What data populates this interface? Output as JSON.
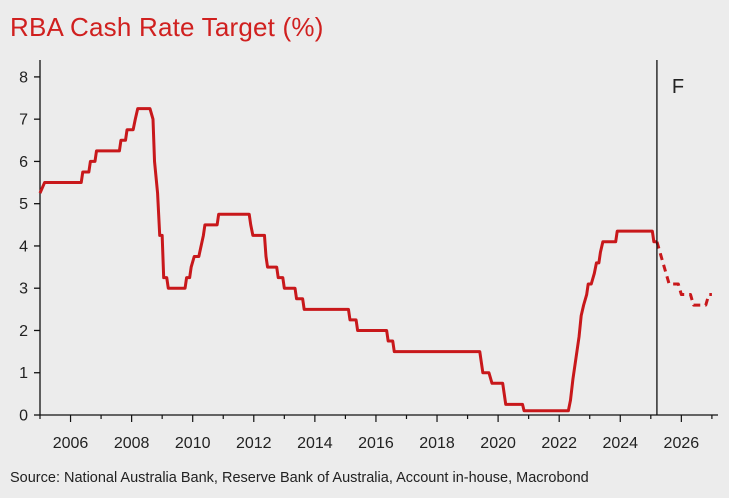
{
  "title": "RBA Cash Rate Target (%)",
  "source": "Source: National Australia Bank, Reserve Bank of Australia, Account in-house, Macrobond",
  "forecast_label": "F",
  "colors": {
    "line": "#c8181b",
    "axis": "#111111",
    "title": "#d0201f",
    "background": "#ececec"
  },
  "chart_data": {
    "type": "line",
    "title": "RBA Cash Rate Target (%)",
    "xlabel": "",
    "ylabel": "",
    "xlim": [
      2005.0,
      2027.2
    ],
    "ylim": [
      0,
      8.4
    ],
    "x_ticks": [
      2006,
      2008,
      2010,
      2012,
      2014,
      2016,
      2018,
      2020,
      2022,
      2024,
      2026
    ],
    "y_ticks": [
      0,
      1,
      2,
      3,
      4,
      5,
      6,
      7,
      8
    ],
    "grid": false,
    "forecast_start": 2025.2,
    "series": [
      {
        "style": "solid",
        "points": [
          [
            2005.0,
            5.25
          ],
          [
            2005.15,
            5.5
          ],
          [
            2006.35,
            5.5
          ],
          [
            2006.4,
            5.75
          ],
          [
            2006.6,
            5.75
          ],
          [
            2006.65,
            6.0
          ],
          [
            2006.8,
            6.0
          ],
          [
            2006.85,
            6.25
          ],
          [
            2007.6,
            6.25
          ],
          [
            2007.65,
            6.5
          ],
          [
            2007.8,
            6.5
          ],
          [
            2007.85,
            6.75
          ],
          [
            2008.05,
            6.75
          ],
          [
            2008.12,
            7.0
          ],
          [
            2008.2,
            7.25
          ],
          [
            2008.6,
            7.25
          ],
          [
            2008.7,
            7.0
          ],
          [
            2008.75,
            6.0
          ],
          [
            2008.85,
            5.25
          ],
          [
            2008.92,
            4.25
          ],
          [
            2009.0,
            4.25
          ],
          [
            2009.05,
            3.25
          ],
          [
            2009.15,
            3.25
          ],
          [
            2009.2,
            3.0
          ],
          [
            2009.75,
            3.0
          ],
          [
            2009.8,
            3.25
          ],
          [
            2009.9,
            3.25
          ],
          [
            2009.95,
            3.5
          ],
          [
            2010.05,
            3.75
          ],
          [
            2010.2,
            3.75
          ],
          [
            2010.35,
            4.25
          ],
          [
            2010.4,
            4.5
          ],
          [
            2010.8,
            4.5
          ],
          [
            2010.85,
            4.75
          ],
          [
            2011.85,
            4.75
          ],
          [
            2011.9,
            4.5
          ],
          [
            2011.97,
            4.25
          ],
          [
            2012.35,
            4.25
          ],
          [
            2012.4,
            3.75
          ],
          [
            2012.45,
            3.5
          ],
          [
            2012.75,
            3.5
          ],
          [
            2012.8,
            3.25
          ],
          [
            2012.95,
            3.25
          ],
          [
            2013.0,
            3.0
          ],
          [
            2013.35,
            3.0
          ],
          [
            2013.4,
            2.75
          ],
          [
            2013.6,
            2.75
          ],
          [
            2013.65,
            2.5
          ],
          [
            2015.1,
            2.5
          ],
          [
            2015.15,
            2.25
          ],
          [
            2015.35,
            2.25
          ],
          [
            2015.4,
            2.0
          ],
          [
            2016.35,
            2.0
          ],
          [
            2016.4,
            1.75
          ],
          [
            2016.55,
            1.75
          ],
          [
            2016.6,
            1.5
          ],
          [
            2019.4,
            1.5
          ],
          [
            2019.45,
            1.25
          ],
          [
            2019.5,
            1.0
          ],
          [
            2019.7,
            1.0
          ],
          [
            2019.8,
            0.75
          ],
          [
            2020.15,
            0.75
          ],
          [
            2020.2,
            0.5
          ],
          [
            2020.25,
            0.25
          ],
          [
            2020.8,
            0.25
          ],
          [
            2020.85,
            0.1
          ],
          [
            2022.3,
            0.1
          ],
          [
            2022.37,
            0.35
          ],
          [
            2022.45,
            0.85
          ],
          [
            2022.55,
            1.35
          ],
          [
            2022.65,
            1.85
          ],
          [
            2022.72,
            2.35
          ],
          [
            2022.8,
            2.6
          ],
          [
            2022.9,
            2.85
          ],
          [
            2022.95,
            3.1
          ],
          [
            2023.05,
            3.1
          ],
          [
            2023.15,
            3.35
          ],
          [
            2023.22,
            3.6
          ],
          [
            2023.3,
            3.6
          ],
          [
            2023.35,
            3.85
          ],
          [
            2023.43,
            4.1
          ],
          [
            2023.85,
            4.1
          ],
          [
            2023.9,
            4.35
          ],
          [
            2025.05,
            4.35
          ],
          [
            2025.1,
            4.1
          ],
          [
            2025.2,
            4.1
          ]
        ]
      },
      {
        "style": "dashed",
        "points": [
          [
            2025.2,
            4.1
          ],
          [
            2025.3,
            3.85
          ],
          [
            2025.4,
            3.6
          ],
          [
            2025.5,
            3.35
          ],
          [
            2025.6,
            3.1
          ],
          [
            2025.9,
            3.1
          ],
          [
            2026.0,
            2.85
          ],
          [
            2026.3,
            2.85
          ],
          [
            2026.4,
            2.6
          ],
          [
            2026.8,
            2.6
          ],
          [
            2026.9,
            2.85
          ],
          [
            2027.0,
            2.85
          ]
        ]
      }
    ]
  }
}
